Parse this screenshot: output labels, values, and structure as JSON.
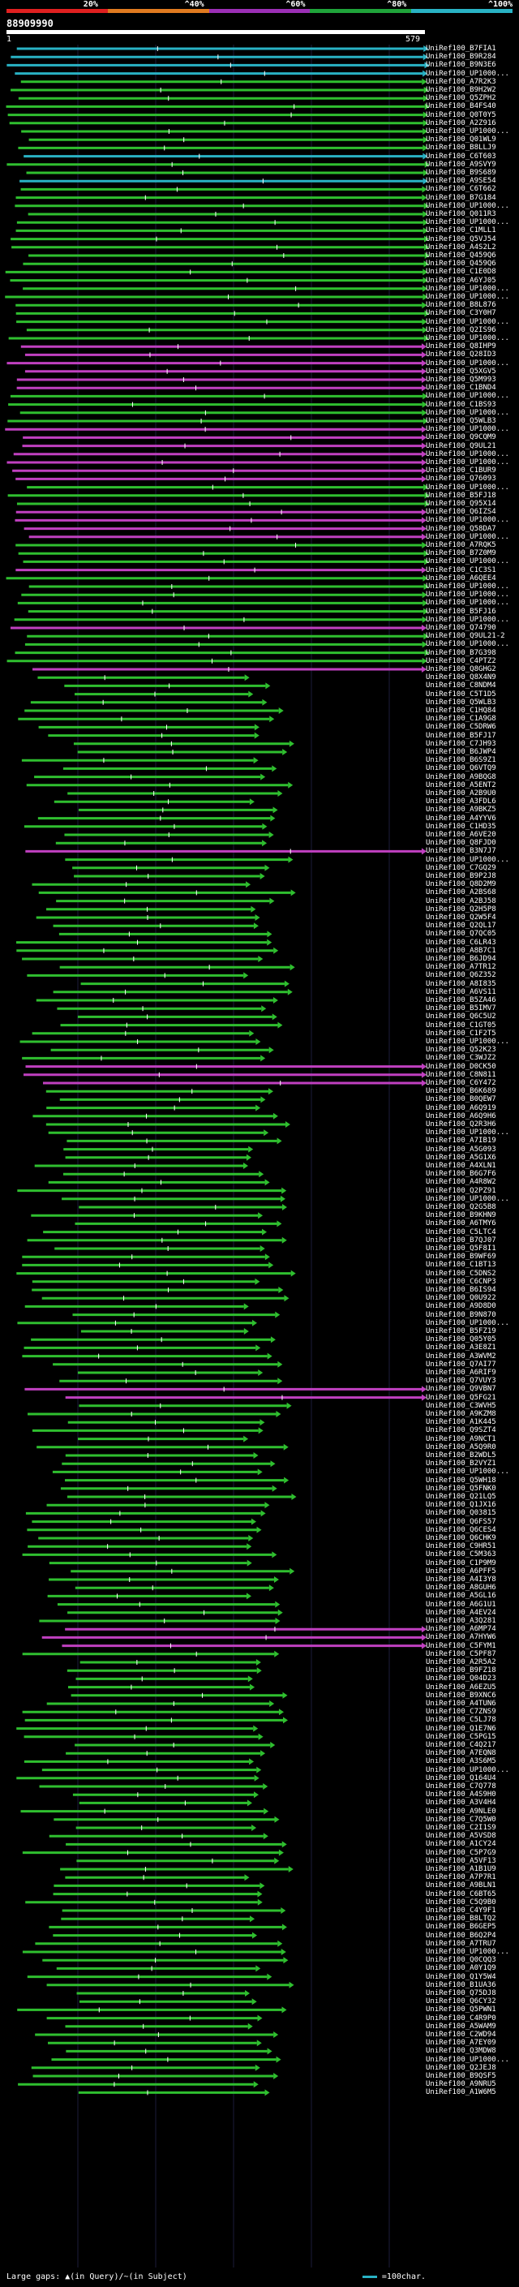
{
  "scale_labels": [
    "20%",
    "^40%",
    "^60%",
    "^80%",
    "^100%"
  ],
  "scale_colors": [
    "#e02020",
    "#e07a20",
    "#9b2fb5",
    "#1fa33a",
    "#29b2c4"
  ],
  "query_id": "88909990",
  "query_start": "1",
  "query_length": "579",
  "hits": [
    "UniRef100_B7FIA1",
    "UniRef100_B9R284",
    "UniRef100_B9N3E6",
    "UniRef100_UP1000...",
    "UniRef100_A7R2K3",
    "UniRef100_B9H2W2",
    "UniRef100_Q5ZPH2",
    "UniRef100_B4FS40",
    "UniRef100_Q0T0Y5",
    "UniRef100_A2Z916",
    "UniRef100_UP1000...",
    "UniRef100_Q01WL9",
    "UniRef100_B8LLJ9",
    "UniRef100_C6T603",
    "UniRef100_A9SVY9",
    "UniRef100_B9S689",
    "UniRef100_A9SE54",
    "UniRef100_C6T662",
    "UniRef100_B7G184",
    "UniRef100_UP1000...",
    "UniRef100_Q011R3",
    "UniRef100_UP1000...",
    "UniRef100_C1MLL1",
    "UniRef100_Q5VJ54",
    "UniRef100_A4S2L2",
    "UniRef100_Q459Q6",
    "UniRef100_Q459Q6",
    "UniRef100_C1E0D8",
    "UniRef100_A6YJ05",
    "UniRef100_UP1000...",
    "UniRef100_UP1000...",
    "UniRef100_B8L876",
    "UniRef100_C3Y0H7",
    "UniRef100_UP1000...",
    "UniRef100_Q2IS96",
    "UniRef100_UP1000...",
    "UniRef100_Q8IHP9",
    "UniRef100_Q28ID3",
    "UniRef100_UP1000...",
    "UniRef100_Q5XGV5",
    "UniRef100_Q5M993",
    "UniRef100_C1BND4",
    "UniRef100_UP1000...",
    "UniRef100_C1BS93",
    "UniRef100_UP1000...",
    "UniRef100_Q5WLB3",
    "UniRef100_UP1000...",
    "UniRef100_Q9CQM9",
    "UniRef100_Q9UL21",
    "UniRef100_UP1000...",
    "UniRef100_UP1000...",
    "UniRef100_C1BUR9",
    "UniRef100_Q76093",
    "UniRef100_UP1000...",
    "UniRef100_B5FJ18",
    "UniRef100_Q95X14",
    "UniRef100_Q6IZS4",
    "UniRef100_UP1000...",
    "UniRef100_Q58DA7",
    "UniRef100_UP1000...",
    "UniRef100_A7RQK5",
    "UniRef100_B7Z0M9",
    "UniRef100_UP1000...",
    "UniRef100_C1C3S1",
    "UniRef100_A6QEE4",
    "UniRef100_UP1000...",
    "UniRef100_UP1000...",
    "UniRef100_UP1000...",
    "UniRef100_B5FJ16",
    "UniRef100_UP1000...",
    "UniRef100_Q74790",
    "UniRef100_Q9UL21-2",
    "UniRef100_UP1000...",
    "UniRef100_B7G398",
    "UniRef100_C4PTZ2",
    "UniRef100_Q8GHG2",
    "UniRef100_Q8X4N9",
    "UniRef100_C8NDM4",
    "UniRef100_C5T1D5",
    "UniRef100_Q5WLB3",
    "UniRef100_C1HQ84",
    "UniRef100_C1A9G8",
    "UniRef100_C5DRW6",
    "UniRef100_B5FJ17",
    "UniRef100_C7JH93",
    "UniRef100_B6JWP4",
    "UniRef100_B6S9Z1",
    "UniRef100_Q6VTQ9",
    "UniRef100_A9BQG8",
    "UniRef100_A5ENT2",
    "UniRef100_A2B9U0",
    "UniRef100_A3FDL6",
    "UniRef100_A9BKZ5",
    "UniRef100_A4YYV6",
    "UniRef100_C1HD35",
    "UniRef100_A6VE20",
    "UniRef100_Q8FJD0",
    "UniRef100_B3N7J7",
    "UniRef100_UP1000...",
    "UniRef100_C7GQ29",
    "UniRef100_B9P2J8",
    "UniRef100_Q8D2M9",
    "UniRef100_A2BS68",
    "UniRef100_A2BJ58",
    "UniRef100_Q2H5P8",
    "UniRef100_Q2W5F4",
    "UniRef100_Q2QL17",
    "UniRef100_Q7QC05",
    "UniRef100_C6LR43",
    "UniRef100_A8B7C1",
    "UniRef100_B6JD94",
    "UniRef100_A7TR12",
    "UniRef100_Q6Z352",
    "UniRef100_A8I835",
    "UniRef100_A6VS11",
    "UniRef100_B5ZA46",
    "UniRef100_B5IMV7",
    "UniRef100_Q6C5U2",
    "UniRef100_C1GT05",
    "UniRef100_C1F2T5",
    "UniRef100_UP1000...",
    "UniRef100_Q52K23",
    "UniRef100_C3WJZ2",
    "UniRef100_D0CK50",
    "UniRef100_C8N811",
    "UniRef100_C6Y472",
    "UniRef100_B6K689",
    "UniRef100_B0QEW7",
    "UniRef100_A6Q919",
    "UniRef100_A6Q9H6",
    "UniRef100_Q2R3H6",
    "UniRef100_UP1000...",
    "UniRef100_A7IB19",
    "UniRef100_A5G093",
    "UniRef100_A5G1X6",
    "UniRef100_A4XLN1",
    "UniRef100_B6G7F6",
    "UniRef100_A4R8W2",
    "UniRef100_Q2PZ91",
    "UniRef100_UP1000...",
    "UniRef100_Q2G5B8",
    "UniRef100_B9KHN9",
    "UniRef100_A6TMY6",
    "UniRef100_C5LTC4",
    "UniRef100_B7QJ07",
    "UniRef100_Q5F8I1",
    "UniRef100_B9WF69",
    "UniRef100_C1BT13",
    "UniRef100_C5DNS2",
    "UniRef100_C6CNP3",
    "UniRef100_B6IS94",
    "UniRef100_Q0U922",
    "UniRef100_A9D8D0",
    "UniRef100_B9N870",
    "UniRef100_UP1000...",
    "UniRef100_B5FZ19",
    "UniRef100_Q05Y05",
    "UniRef100_A3E8Z1",
    "UniRef100_A3WVM2",
    "UniRef100_Q7AI77",
    "UniRef100_A6RIF9",
    "UniRef100_Q7VUY3",
    "UniRef100_Q9VBN7",
    "UniRef100_Q5FG21",
    "UniRef100_C3WVH5",
    "UniRef100_A9KZM8",
    "UniRef100_A1K445",
    "UniRef100_Q9SZT4",
    "UniRef100_A9NCT1",
    "UniRef100_A5Q9R0",
    "UniRef100_B2WDL5",
    "UniRef100_B2VYZ1",
    "UniRef100_UP1000...",
    "UniRef100_Q5WH18",
    "UniRef100_Q5FNK0",
    "UniRef100_Q21LQ5",
    "UniRef100_Q1JX16",
    "UniRef100_Q03815",
    "UniRef100_Q6FS57",
    "UniRef100_Q6CES4",
    "UniRef100_Q6CHK9",
    "UniRef100_C9HR51",
    "UniRef100_C5M363",
    "UniRef100_C1P9M9",
    "UniRef100_A6PFF5",
    "UniRef100_A4I3Y8",
    "UniRef100_A8GUH6",
    "UniRef100_A5GL16",
    "UniRef100_A6G1U1",
    "UniRef100_A4EV24",
    "UniRef100_A3Q281",
    "UniRef100_A6MP74",
    "UniRef100_A7HYW6",
    "UniRef100_C5FYM1",
    "UniRef100_C5PF87",
    "UniRef100_A2R5A2",
    "UniRef100_B9FZ18",
    "UniRef100_Q04D23",
    "UniRef100_A6EZU5",
    "UniRef100_B9XNC6",
    "UniRef100_A4TUN6",
    "UniRef100_C7ZNS9",
    "UniRef100_C5LJ78",
    "UniRef100_Q1E7N6",
    "UniRef100_C5PG15",
    "UniRef100_C4Q217",
    "UniRef100_A7EQN8",
    "UniRef100_A3S6M5",
    "UniRef100_UP1000...",
    "UniRef100_Q164U4",
    "UniRef100_C7Q778",
    "UniRef100_A4S9H0",
    "UniRef100_A3V4H4",
    "UniRef100_A9NLE0",
    "UniRef100_C7Q5W0",
    "UniRef100_C2I1S9",
    "UniRef100_A5VSD8",
    "UniRef100_A1CY24",
    "UniRef100_C5P7G9",
    "UniRef100_A5VF13",
    "UniRef100_A1B1U9",
    "UniRef100_A7P7R1",
    "UniRef100_A9BLN1",
    "UniRef100_C6BT65",
    "UniRef100_C5Q9B0",
    "UniRef100_C4Y9F1",
    "UniRef100_B8LTQ2",
    "UniRef100_B6GEP5",
    "UniRef100_B6Q2P4",
    "UniRef100_A7TRU7",
    "UniRef100_UP1000...",
    "UniRef100_Q0CQQ3",
    "UniRef100_A0Y1Q9",
    "UniRef100_Q1Y5W4",
    "UniRef100_B1UA36",
    "UniRef100_Q75DJ8",
    "UniRef100_Q6CY32",
    "UniRef100_Q5PWN1",
    "UniRef100_C4R9P0",
    "UniRef100_A5WAM9",
    "UniRef100_C2WD94",
    "UniRef100_A7EY09",
    "UniRef100_Q3MDW8",
    "UniRef100_UP1000...",
    "UniRef100_Q2JEJ8",
    "UniRef100_B9QSF5",
    "UniRef100_A9NRU5",
    "UniRef100_A1W6M5"
  ],
  "footer": {
    "gaps_text": "Large gaps: ▲(in Query)/~(in Subject)",
    "legend_text": "=100char."
  }
}
